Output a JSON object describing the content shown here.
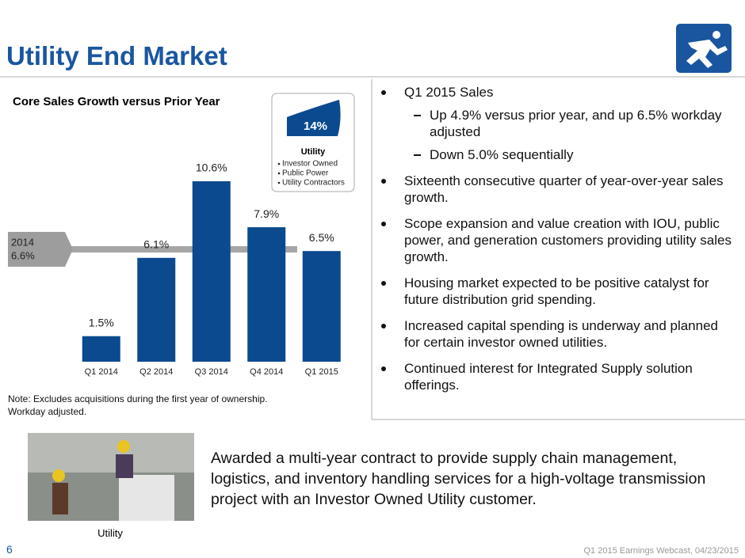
{
  "title": "Utility End Market",
  "chart_data": {
    "type": "bar",
    "title": "Core Sales Growth versus Prior Year",
    "categories": [
      "Q1 2014",
      "Q2 2014",
      "Q3 2014",
      "Q4 2014",
      "Q1 2015"
    ],
    "values": [
      1.5,
      6.1,
      10.6,
      7.9,
      6.5
    ],
    "value_labels": [
      "1.5%",
      "6.1%",
      "10.6%",
      "7.9%",
      "6.5%"
    ],
    "color": "#0b4a8f",
    "reference": {
      "label": "2014",
      "value": 6.6,
      "value_label": "6.6%"
    },
    "note": [
      "Note:  Excludes acquisitions during the first year of ownership.",
      "Workday adjusted."
    ]
  },
  "callout": {
    "value": "14%",
    "title": "Utility",
    "items": [
      "Investor Owned",
      "Public Power",
      "Utility Contractors"
    ]
  },
  "bullets": [
    {
      "text": "Q1 2015 Sales",
      "sub": [
        "Up 4.9% versus prior year, and up 6.5% workday adjusted",
        "Down 5.0% sequentially"
      ]
    },
    {
      "text": "Sixteenth consecutive quarter of year-over-year sales growth.",
      "sub": []
    },
    {
      "text": "Scope expansion and value creation with IOU, public power, and generation customers providing utility sales growth.",
      "sub": []
    },
    {
      "text": "Housing market expected to be positive catalyst for future distribution grid spending.",
      "sub": []
    },
    {
      "text": "Increased capital spending is underway and planned for certain investor owned utilities.",
      "sub": []
    },
    {
      "text": "Continued interest for Integrated Supply solution offerings.",
      "sub": []
    }
  ],
  "photo_caption": "Utility",
  "award": "Awarded a multi-year contract to provide supply chain management, logistics, and inventory handling services for a high-voltage transmission project with an Investor Owned Utility customer.",
  "footer": {
    "page": "6",
    "event": "Q1 2015 Earnings Webcast, 04/23/2015"
  }
}
